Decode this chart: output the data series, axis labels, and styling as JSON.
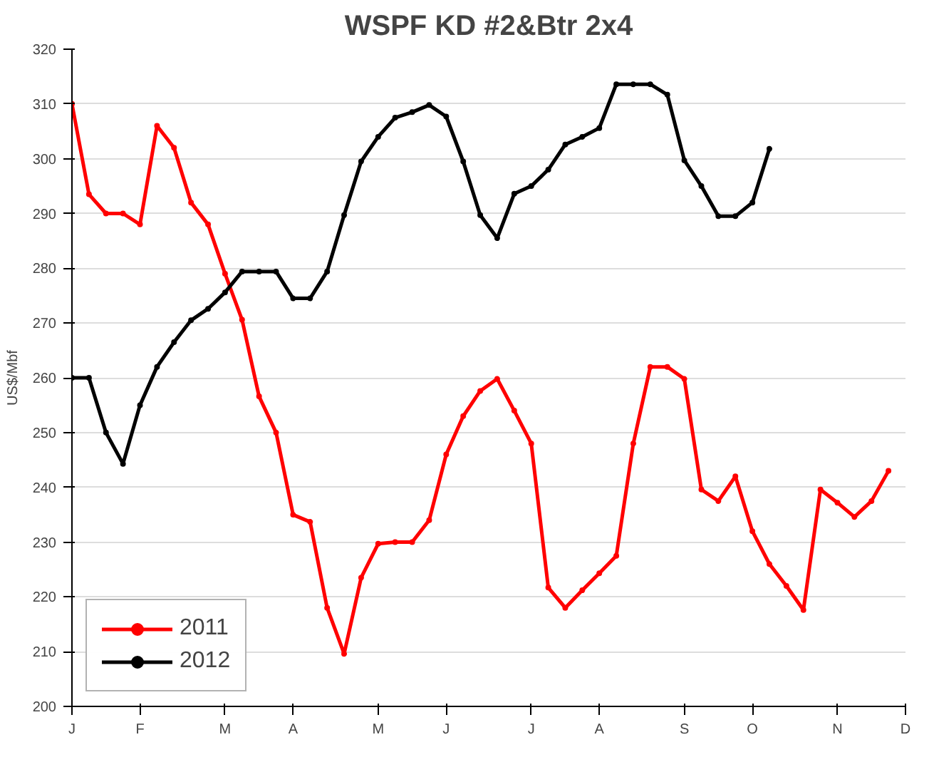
{
  "chart_data": {
    "type": "line",
    "title": "WSPF KD #2&Btr 2x4",
    "ylabel": "US$/Mbf",
    "categories": [
      "J",
      null,
      null,
      null,
      "F",
      null,
      null,
      null,
      null,
      "M",
      null,
      null,
      null,
      "A",
      null,
      null,
      null,
      null,
      "M",
      null,
      null,
      null,
      "J",
      null,
      null,
      null,
      null,
      "J",
      null,
      null,
      null,
      "A",
      null,
      null,
      null,
      null,
      "S",
      null,
      null,
      null,
      "O",
      null,
      null,
      null,
      null,
      "N",
      null,
      null,
      null,
      "D"
    ],
    "ylim": [
      200,
      320
    ],
    "yticks": [
      200,
      210,
      220,
      230,
      240,
      250,
      260,
      270,
      280,
      290,
      300,
      310,
      320
    ],
    "grid": "y",
    "legend": "bottom left",
    "marker": "circle",
    "line_style": "solid",
    "series": [
      {
        "name": "2011",
        "color": "#ff0000",
        "values": [
          310,
          293.5,
          290,
          290,
          288,
          306,
          302,
          292,
          288,
          279,
          270.6,
          256.6,
          250,
          235,
          233.7,
          218,
          209.6,
          223.5,
          229.7,
          230,
          230,
          234,
          246,
          253,
          257.6,
          259.8,
          254,
          248,
          221.7,
          218,
          221.2,
          224.3,
          227.5,
          248,
          262,
          262,
          259.8,
          239.6,
          237.5,
          242,
          232,
          226,
          222,
          217.6,
          239.6,
          237.2,
          234.6,
          237.5,
          243,
          null
        ]
      },
      {
        "name": "2012",
        "color": "#000000",
        "values": [
          260,
          260,
          250,
          244.3,
          255,
          262,
          266.5,
          270.5,
          272.6,
          275.6,
          279.4,
          279.4,
          279.4,
          274.5,
          274.5,
          279.4,
          289.7,
          299.5,
          304,
          307.5,
          308.5,
          309.8,
          307.7,
          299.5,
          289.7,
          285.5,
          293.6,
          295,
          298,
          302.6,
          304,
          305.6,
          313.6,
          313.6,
          313.6,
          311.7,
          299.7,
          295,
          289.5,
          289.5,
          292,
          301.8,
          null,
          null,
          null,
          null,
          null,
          null,
          null,
          null
        ]
      }
    ]
  }
}
